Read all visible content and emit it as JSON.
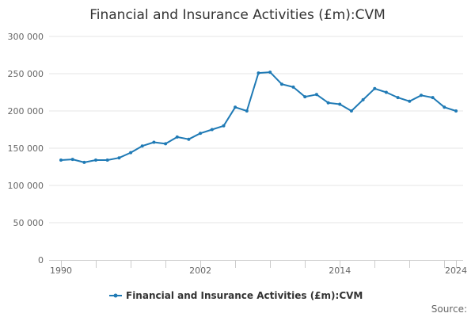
{
  "chart_data": {
    "type": "line",
    "title": "Financial and Insurance Activities (£m):CVM",
    "xlabel": "",
    "ylabel": "",
    "xlim": [
      1990,
      2024
    ],
    "ylim": [
      0,
      300000
    ],
    "y_ticks": [
      0,
      50000,
      100000,
      150000,
      200000,
      250000,
      300000
    ],
    "y_tick_labels": [
      "0",
      "50 000",
      "100 000",
      "150 000",
      "200 000",
      "250 000",
      "300 000"
    ],
    "x_tick_labels": [
      "1990",
      "2002",
      "2014",
      "2024"
    ],
    "x_labeled_ticks": [
      1990,
      2002,
      2014,
      2024
    ],
    "x_minor_tick_step": 3,
    "grid": "horizontal",
    "legend_position": "bottom",
    "series": [
      {
        "name": "Financial and Insurance Activities (£m):CVM",
        "color": "#1f7ab5",
        "x": [
          1990,
          1991,
          1992,
          1993,
          1994,
          1995,
          1996,
          1997,
          1998,
          1999,
          2000,
          2001,
          2002,
          2003,
          2004,
          2005,
          2006,
          2007,
          2008,
          2009,
          2010,
          2011,
          2012,
          2013,
          2014,
          2015,
          2016,
          2017,
          2018,
          2019,
          2020,
          2021,
          2022,
          2023,
          2024
        ],
        "values": [
          134000,
          135000,
          131000,
          134000,
          134000,
          137000,
          144000,
          153000,
          158000,
          156000,
          165000,
          162000,
          170000,
          175000,
          180000,
          205000,
          200000,
          251000,
          252000,
          236000,
          232000,
          219000,
          222000,
          211000,
          209000,
          200000,
          215000,
          230000,
          225000,
          218000,
          213000,
          221000,
          218000,
          205000,
          200000
        ]
      }
    ]
  },
  "source": {
    "label": "Source:"
  }
}
